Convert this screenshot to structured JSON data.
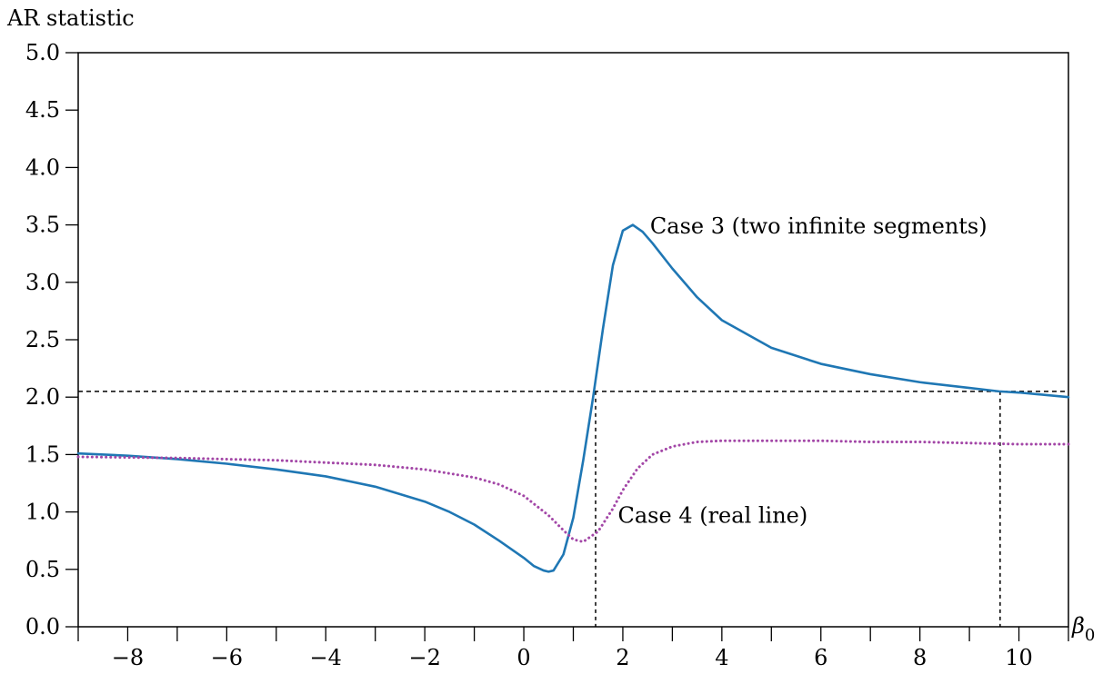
{
  "chart_data": {
    "type": "line",
    "ylabel": "AR statistic",
    "xlabel": "β",
    "xlabel_sub": "0",
    "xlim": [
      -9,
      11
    ],
    "ylim": [
      0,
      5
    ],
    "x_ticks_major": [
      -8,
      -6,
      -4,
      -2,
      0,
      2,
      4,
      6,
      8,
      10
    ],
    "x_ticks_major_labels": [
      "−8",
      "−6",
      "−4",
      "−2",
      "0",
      "2",
      "4",
      "6",
      "8",
      "10"
    ],
    "x_ticks_minor": [
      -9,
      -7,
      -5,
      -3,
      -1,
      1,
      3,
      5,
      7,
      9,
      11
    ],
    "y_ticks": [
      0,
      0.5,
      1,
      1.5,
      2,
      2.5,
      3,
      3.5,
      4,
      4.5,
      5
    ],
    "y_tick_labels": [
      "0.0",
      "0.5",
      "1.0",
      "1.5",
      "2.0",
      "2.5",
      "3.0",
      "3.5",
      "4.0",
      "4.5",
      "5.0"
    ],
    "grid": false,
    "critical_value": 2.05,
    "critical_x": [
      1.45,
      9.62
    ],
    "series": [
      {
        "name": "Case 3 (two infinite segments)",
        "style": "solid",
        "color": "#1f77b4",
        "x": [
          -9,
          -8,
          -7,
          -6,
          -5,
          -4,
          -3,
          -2,
          -1.5,
          -1,
          -0.5,
          0,
          0.2,
          0.4,
          0.5,
          0.6,
          0.8,
          1.0,
          1.2,
          1.4,
          1.6,
          1.8,
          2.0,
          2.2,
          2.4,
          2.6,
          3.0,
          3.5,
          4,
          5,
          6,
          7,
          8,
          9,
          9.6,
          10,
          11
        ],
        "y": [
          1.51,
          1.49,
          1.46,
          1.42,
          1.37,
          1.31,
          1.22,
          1.09,
          1.0,
          0.89,
          0.75,
          0.6,
          0.53,
          0.49,
          0.48,
          0.49,
          0.63,
          0.95,
          1.45,
          2.0,
          2.6,
          3.15,
          3.45,
          3.5,
          3.44,
          3.34,
          3.12,
          2.87,
          2.67,
          2.43,
          2.29,
          2.2,
          2.13,
          2.08,
          2.05,
          2.04,
          2.0
        ]
      },
      {
        "name": "Case 4 (real line)",
        "style": "dotted",
        "color": "#a347a7",
        "x": [
          -9,
          -7,
          -5,
          -4,
          -3,
          -2,
          -1,
          -0.5,
          0,
          0.5,
          0.8,
          1.0,
          1.2,
          1.5,
          1.8,
          2.0,
          2.3,
          2.6,
          3,
          3.5,
          4,
          5,
          6,
          7,
          8,
          9,
          10,
          11
        ],
        "y": [
          1.48,
          1.47,
          1.45,
          1.43,
          1.41,
          1.37,
          1.3,
          1.24,
          1.14,
          0.97,
          0.84,
          0.76,
          0.74,
          0.83,
          1.03,
          1.19,
          1.38,
          1.5,
          1.57,
          1.61,
          1.62,
          1.62,
          1.62,
          1.61,
          1.61,
          1.6,
          1.59,
          1.59
        ]
      }
    ],
    "annotations": [
      {
        "text": "Case 3 (two infinite segments)",
        "x": 2.55,
        "y": 3.49
      },
      {
        "text": "Case 4 (real line)",
        "x": 1.9,
        "y": 0.97
      }
    ]
  }
}
